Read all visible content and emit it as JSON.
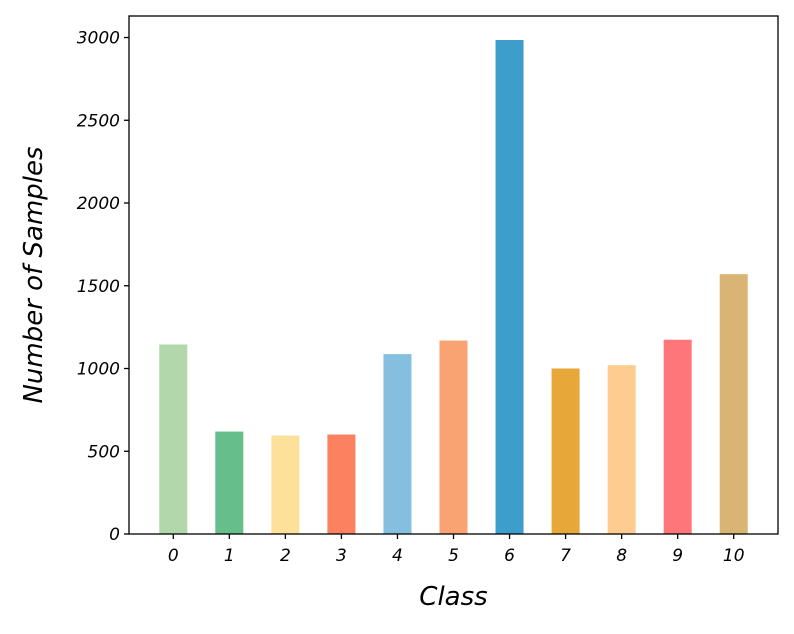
{
  "chart_data": {
    "type": "bar",
    "title": "",
    "xlabel": "Class",
    "ylabel": "Number of Samples",
    "categories": [
      "0",
      "1",
      "2",
      "3",
      "4",
      "5",
      "6",
      "7",
      "8",
      "9",
      "10"
    ],
    "values": [
      1145,
      619,
      595,
      601,
      1087,
      1169,
      2985,
      1000,
      1020,
      1174,
      1570
    ],
    "colors": [
      "#b2d7aa",
      "#66be8a",
      "#fde19b",
      "#fb8161",
      "#84bfe0",
      "#f9a372",
      "#3d9dcb",
      "#e7a739",
      "#fecc91",
      "#fe7679",
      "#dab474"
    ],
    "ylim": [
      0,
      3130
    ],
    "yticks": [
      0,
      500,
      1000,
      1500,
      2000,
      2500,
      3000
    ],
    "grid": false
  }
}
